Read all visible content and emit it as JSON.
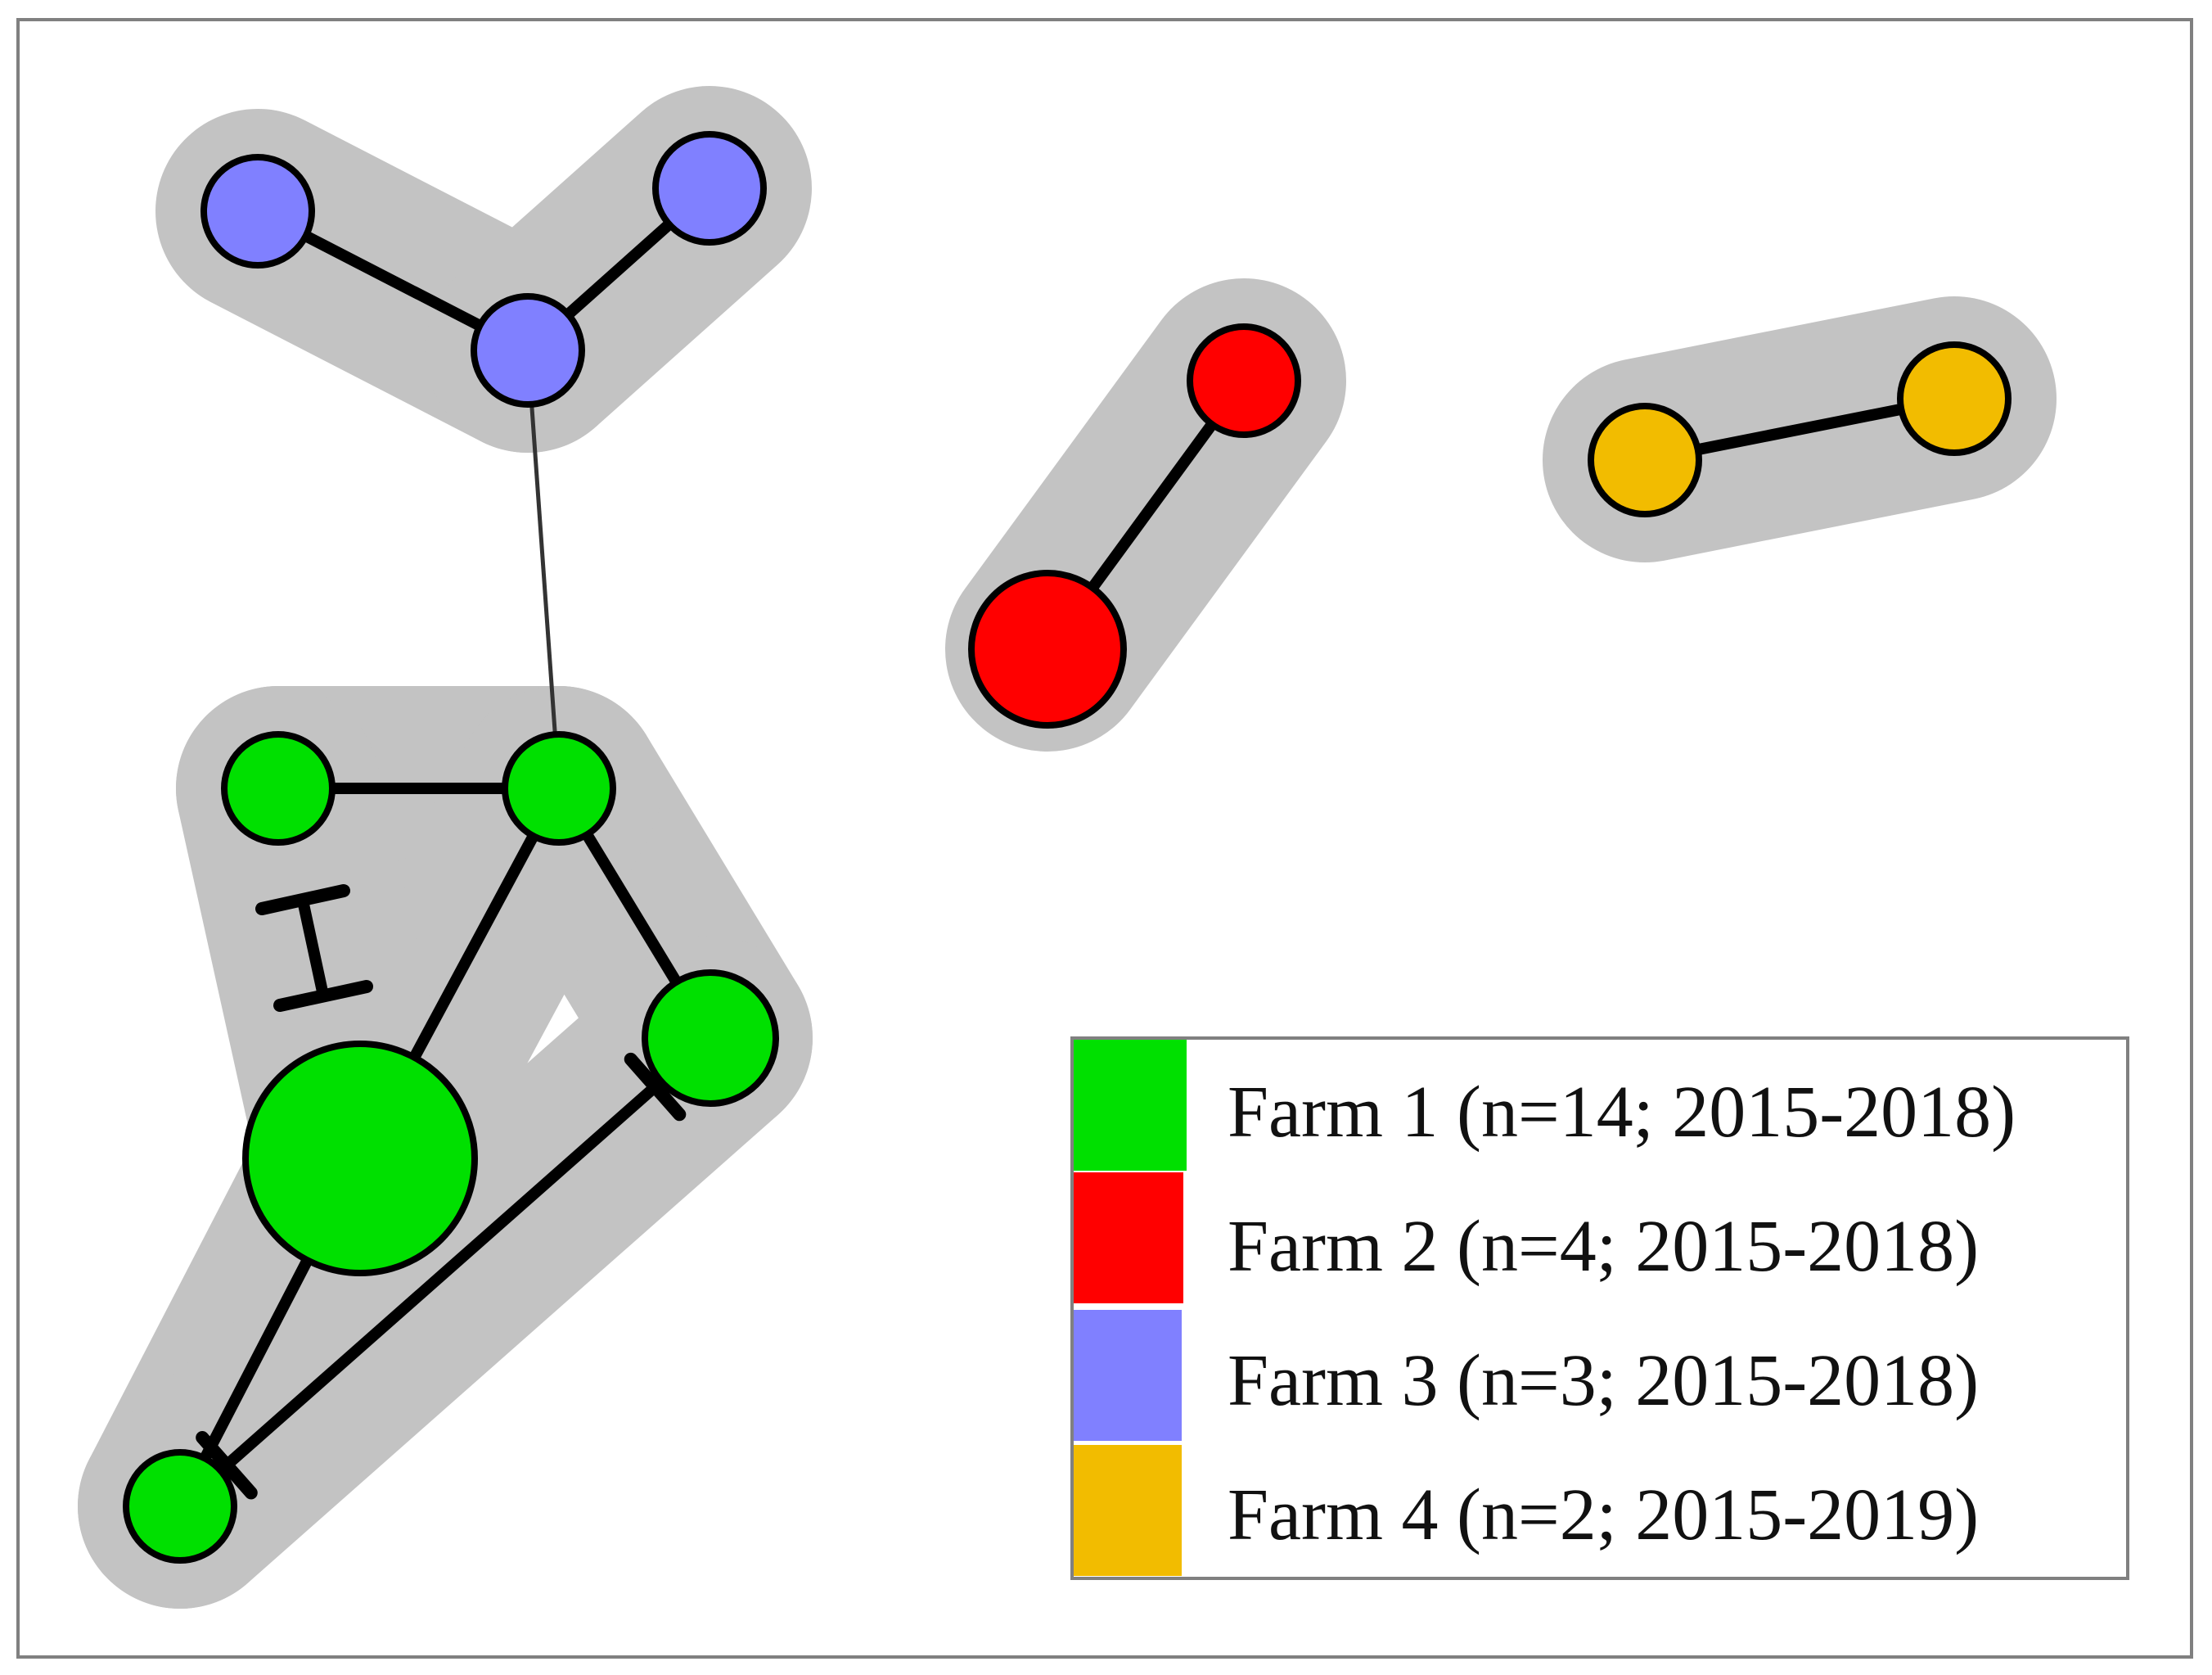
{
  "figure": {
    "clusters": [
      {
        "name": "farm-3-cluster",
        "farm": "Farm 3"
      },
      {
        "name": "farm-2-cluster",
        "farm": "Farm 2"
      },
      {
        "name": "farm-4-cluster",
        "farm": "Farm 4"
      },
      {
        "name": "farm-1-cluster",
        "farm": "Farm 1"
      }
    ],
    "nodes": [
      {
        "id": "f3a",
        "farm": "Farm 3",
        "color": "#8080ff"
      },
      {
        "id": "f3b",
        "farm": "Farm 3",
        "color": "#8080ff"
      },
      {
        "id": "f3c",
        "farm": "Farm 3",
        "color": "#8080ff"
      },
      {
        "id": "f2a",
        "farm": "Farm 2",
        "color": "#ff0000"
      },
      {
        "id": "f2b",
        "farm": "Farm 2",
        "color": "#ff0000"
      },
      {
        "id": "f4a",
        "farm": "Farm 4",
        "color": "#f2bc00"
      },
      {
        "id": "f4b",
        "farm": "Farm 4",
        "color": "#f2bc00"
      },
      {
        "id": "f1a",
        "farm": "Farm 1",
        "color": "#00e000"
      },
      {
        "id": "f1b",
        "farm": "Farm 1",
        "color": "#00e000"
      },
      {
        "id": "f1c",
        "farm": "Farm 1",
        "color": "#00e000"
      },
      {
        "id": "f1d",
        "farm": "Farm 1",
        "color": "#00e000"
      },
      {
        "id": "f1e",
        "farm": "Farm 1",
        "color": "#00e000"
      }
    ],
    "edges": [
      {
        "from": "f3a",
        "to": "f3c",
        "style": "thick"
      },
      {
        "from": "f3b",
        "to": "f3c",
        "style": "thick"
      },
      {
        "from": "f3c",
        "to": "f1b",
        "style": "thin"
      },
      {
        "from": "f2a",
        "to": "f2b",
        "style": "thick"
      },
      {
        "from": "f4a",
        "to": "f4b",
        "style": "thick"
      },
      {
        "from": "f1a",
        "to": "f1b",
        "style": "thick"
      },
      {
        "from": "f1b",
        "to": "f1c",
        "style": "thick"
      },
      {
        "from": "f1b",
        "to": "f1d",
        "style": "thick"
      },
      {
        "from": "f1d",
        "to": "f1e",
        "style": "thick"
      },
      {
        "from": "f1e",
        "to": "f1c",
        "style": "hatched"
      }
    ]
  },
  "legend": {
    "items": [
      {
        "label": "Farm 1 (n=14; 2015-2018)",
        "color": "#00e000"
      },
      {
        "label": "Farm 2 (n=4; 2015-2018)",
        "color": "#ff0000"
      },
      {
        "label": "Farm 3 (n=3; 2015-2018)",
        "color": "#8080ff"
      },
      {
        "label": "Farm 4 (n=2; 2015-2019)",
        "color": "#f2bc00"
      }
    ]
  },
  "colors": {
    "frame": "#808080",
    "cluster_halo": "#c3c3c3",
    "edge": "#000000",
    "thin_edge": "#333333"
  }
}
